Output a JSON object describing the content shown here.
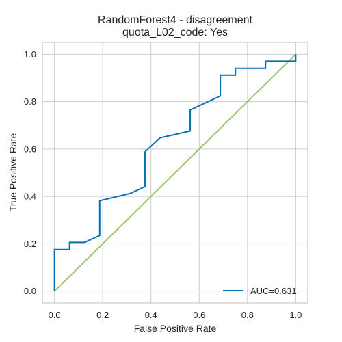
{
  "chart_data": {
    "type": "line",
    "title_line1": "RandomForest4 - disagreement",
    "title_line2": "quota_L02_code: Yes",
    "xlabel": "False Positive Rate",
    "ylabel": "True Positive Rate",
    "xlim": [
      -0.05,
      1.05
    ],
    "ylim": [
      -0.05,
      1.05
    ],
    "xticks": [
      0.0,
      0.2,
      0.4,
      0.6,
      0.8,
      1.0
    ],
    "yticks": [
      0.0,
      0.2,
      0.4,
      0.6,
      0.8,
      1.0
    ],
    "tick_labels": [
      "0.0",
      "0.2",
      "0.4",
      "0.6",
      "0.8",
      "1.0"
    ],
    "grid": true,
    "legend_position": "lower-right",
    "series": [
      {
        "name": "AUC=0.631",
        "color": "#0072b2",
        "x": [
          0.0,
          0.0,
          0.0625,
          0.0625,
          0.125,
          0.1875,
          0.1875,
          0.3125,
          0.375,
          0.375,
          0.4375,
          0.5625,
          0.5625,
          0.6875,
          0.6875,
          0.75,
          0.75,
          0.875,
          0.875,
          1.0,
          1.0
        ],
        "y": [
          0.0,
          0.176,
          0.176,
          0.206,
          0.206,
          0.235,
          0.382,
          0.412,
          0.441,
          0.588,
          0.647,
          0.676,
          0.765,
          0.824,
          0.912,
          0.912,
          0.941,
          0.941,
          0.971,
          0.971,
          1.0
        ]
      }
    ],
    "reference_line": {
      "x": [
        0.0,
        1.0
      ],
      "y": [
        0.0,
        1.0
      ],
      "color": "#9bc46e"
    }
  }
}
